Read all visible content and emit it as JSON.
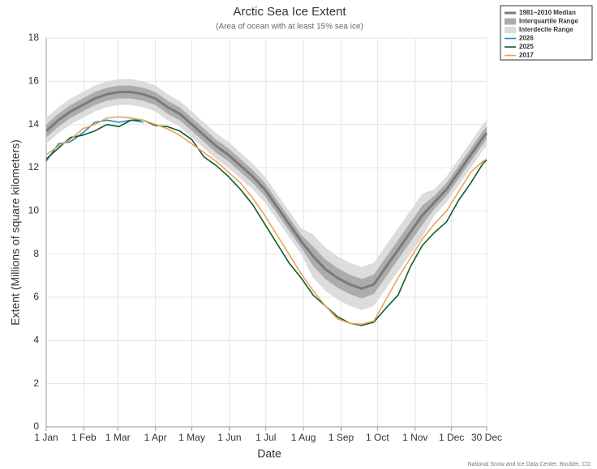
{
  "chart_data": {
    "type": "line",
    "title": "Arctic Sea Ice Extent",
    "subtitle": "(Area of ocean with at least 15% sea ice)",
    "x_label": "Date",
    "y_label": "Extent (Millions of square kilometers)",
    "credit": "National Snow and Ice Data Center, Boulder, CO",
    "grid": true,
    "xlim": [
      1,
      364
    ],
    "xticks": [
      {
        "value": 1,
        "label": "1 Jan"
      },
      {
        "value": 32,
        "label": "1 Feb"
      },
      {
        "value": 60,
        "label": "1 Mar"
      },
      {
        "value": 91,
        "label": "1 Apr"
      },
      {
        "value": 121,
        "label": "1 May"
      },
      {
        "value": 152,
        "label": "1 Jun"
      },
      {
        "value": 182,
        "label": "1 Jul"
      },
      {
        "value": 213,
        "label": "1 Aug"
      },
      {
        "value": 244,
        "label": "1 Sep"
      },
      {
        "value": 274,
        "label": "1 Oct"
      },
      {
        "value": 305,
        "label": "1 Nov"
      },
      {
        "value": 335,
        "label": "1 Dec"
      },
      {
        "value": 364,
        "label": "30 Dec"
      }
    ],
    "ylim": [
      0,
      18
    ],
    "yticks": [
      0,
      2,
      4,
      6,
      8,
      10,
      12,
      14,
      16,
      18
    ],
    "x": [
      1,
      11,
      21,
      31,
      41,
      51,
      61,
      71,
      81,
      91,
      101,
      111,
      121,
      131,
      141,
      151,
      161,
      171,
      181,
      191,
      201,
      211,
      221,
      231,
      241,
      251,
      261,
      271,
      281,
      291,
      301,
      311,
      321,
      331,
      341,
      351,
      361,
      364
    ],
    "bands": [
      {
        "name": "Interdecile Range",
        "color": "#dcdcdc",
        "lower": [
          13.1,
          13.6,
          14.0,
          14.3,
          14.6,
          14.8,
          14.9,
          14.9,
          14.8,
          14.6,
          14.2,
          13.9,
          13.4,
          12.9,
          12.4,
          12.0,
          11.5,
          11.0,
          10.4,
          9.6,
          8.8,
          8.0,
          6.9,
          6.3,
          5.9,
          5.6,
          5.4,
          5.6,
          6.4,
          7.2,
          8.0,
          8.8,
          9.8,
          10.4,
          11.2,
          12.0,
          12.8,
          13.0
        ],
        "upper": [
          14.3,
          14.8,
          15.2,
          15.5,
          15.8,
          16.0,
          16.1,
          16.1,
          16.0,
          15.8,
          15.4,
          15.1,
          14.6,
          14.1,
          13.6,
          13.2,
          12.7,
          12.2,
          11.6,
          10.8,
          10.0,
          9.2,
          8.9,
          8.3,
          7.9,
          7.6,
          7.4,
          7.6,
          8.4,
          9.2,
          10.0,
          10.8,
          11.0,
          11.6,
          12.4,
          13.2,
          14.0,
          14.2
        ]
      },
      {
        "name": "Interquartile Range",
        "color": "#acacac",
        "lower": [
          13.4,
          13.9,
          14.3,
          14.6,
          14.9,
          15.1,
          15.2,
          15.2,
          15.1,
          14.9,
          14.5,
          14.2,
          13.7,
          13.2,
          12.7,
          12.3,
          11.8,
          11.3,
          10.7,
          9.9,
          9.1,
          8.3,
          7.45,
          6.85,
          6.45,
          6.15,
          5.95,
          6.15,
          6.95,
          7.75,
          8.55,
          9.35,
          10.1,
          10.7,
          11.5,
          12.3,
          13.1,
          13.3
        ],
        "upper": [
          14.0,
          14.5,
          14.9,
          15.2,
          15.5,
          15.7,
          15.8,
          15.8,
          15.7,
          15.5,
          15.1,
          14.8,
          14.3,
          13.8,
          13.3,
          12.9,
          12.4,
          11.9,
          11.3,
          10.5,
          9.7,
          8.9,
          8.35,
          7.75,
          7.35,
          7.05,
          6.85,
          7.05,
          7.85,
          8.65,
          9.45,
          10.25,
          10.7,
          11.3,
          12.1,
          12.9,
          13.7,
          13.9
        ]
      }
    ],
    "series": [
      {
        "name": "1981–2010 Median",
        "color": "#7a7a7a",
        "width": 3,
        "values": [
          13.7,
          14.2,
          14.6,
          14.9,
          15.2,
          15.4,
          15.5,
          15.5,
          15.4,
          15.2,
          14.8,
          14.5,
          14.0,
          13.5,
          13.0,
          12.6,
          12.1,
          11.6,
          11.0,
          10.2,
          9.4,
          8.6,
          7.9,
          7.3,
          6.9,
          6.6,
          6.4,
          6.6,
          7.4,
          8.2,
          9.0,
          9.8,
          10.4,
          11.0,
          11.8,
          12.6,
          13.4,
          13.6
        ]
      },
      {
        "name": "2026",
        "color": "#1e8bc8",
        "width": 1.6,
        "values": [
          12.3,
          13.1,
          13.2,
          13.6,
          14.1,
          14.2,
          14.1,
          14.2,
          14.1,
          null,
          null,
          null,
          null,
          null,
          null,
          null,
          null,
          null,
          null,
          null,
          null,
          null,
          null,
          null,
          null,
          null,
          null,
          null,
          null,
          null,
          null,
          null,
          null,
          null,
          null,
          null,
          null,
          null
        ]
      },
      {
        "name": "2025",
        "color": "#0d5c2e",
        "width": 1.6,
        "values": [
          12.4,
          12.9,
          13.4,
          13.5,
          13.7,
          14.0,
          13.9,
          14.2,
          14.2,
          13.95,
          13.9,
          13.7,
          13.3,
          12.5,
          12.1,
          11.6,
          11.0,
          10.3,
          9.4,
          8.5,
          7.6,
          6.9,
          6.1,
          5.6,
          5.1,
          4.8,
          4.7,
          4.85,
          5.5,
          6.1,
          7.4,
          8.4,
          9.0,
          9.5,
          10.5,
          11.3,
          12.2,
          12.35
        ]
      },
      {
        "name": "2017",
        "color": "#eca455",
        "width": 1.6,
        "values": [
          12.6,
          13.0,
          13.3,
          13.8,
          14.0,
          14.3,
          14.35,
          14.3,
          14.2,
          14.0,
          13.8,
          13.5,
          13.1,
          12.7,
          12.3,
          11.8,
          11.3,
          10.6,
          9.8,
          8.9,
          8.0,
          7.1,
          6.3,
          5.6,
          5.0,
          4.8,
          4.75,
          4.9,
          5.9,
          6.9,
          7.8,
          8.7,
          9.4,
          10.0,
          10.9,
          11.8,
          12.3,
          12.4
        ]
      }
    ]
  }
}
